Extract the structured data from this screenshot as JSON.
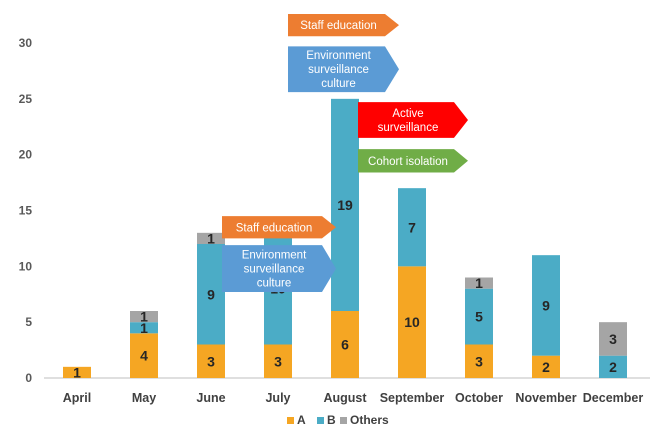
{
  "chart_data": {
    "type": "bar",
    "stacked": true,
    "categories": [
      "April",
      "May",
      "June",
      "July",
      "August",
      "September",
      "October",
      "November",
      "December"
    ],
    "series": [
      {
        "name": "A",
        "color": "#F5A623",
        "values": [
          1,
          4,
          3,
          3,
          6,
          10,
          3,
          2,
          0
        ]
      },
      {
        "name": "B",
        "color": "#4BACC6",
        "values": [
          0,
          1,
          9,
          10,
          19,
          7,
          5,
          9,
          2
        ]
      },
      {
        "name": "Others",
        "color": "#A5A5A5",
        "values": [
          0,
          1,
          1,
          0,
          0,
          0,
          1,
          0,
          3
        ]
      }
    ],
    "ylim": [
      0,
      30
    ],
    "yticks": [
      0,
      5,
      10,
      15,
      20,
      25,
      30
    ],
    "grid": false,
    "legend": "bottom",
    "annotations": [
      {
        "text": "Staff education",
        "color": "#ED7D31",
        "category": "July",
        "y_top": 14.5,
        "y_bottom": 12.5
      },
      {
        "text": "Environment surveillance culture",
        "color": "#5B9BD5",
        "category": "July",
        "y_top": 11.9,
        "y_bottom": 7.7
      },
      {
        "text": "Staff education",
        "color": "#ED7D31",
        "category": "August",
        "y_top": 32.6,
        "y_bottom": 30.6
      },
      {
        "text": "Environment surveillance culture",
        "color": "#5B9BD5",
        "category": "August",
        "y_top": 29.7,
        "y_bottom": 25.6
      },
      {
        "text": "Active surveillance",
        "color": "#FF0000",
        "category": "September",
        "y_top": 24.7,
        "y_bottom": 21.5
      },
      {
        "text": "Cohort isolation",
        "color": "#70AD47",
        "category": "September",
        "y_top": 20.5,
        "y_bottom": 18.4
      }
    ]
  }
}
